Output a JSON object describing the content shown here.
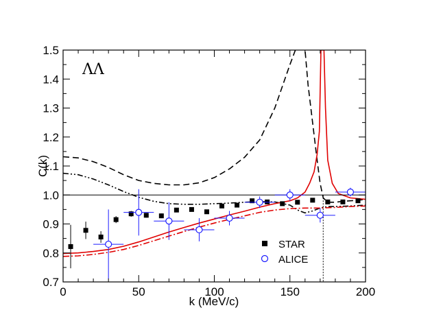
{
  "chart_data": {
    "type": "scatter",
    "panel_label": "ΛΛ",
    "xlabel": "k (MeV/c)",
    "ylabel": "C(k)",
    "xlim": [
      0,
      200
    ],
    "ylim": [
      0.7,
      1.5
    ],
    "x_ticks": [
      0,
      50,
      100,
      150,
      200
    ],
    "y_ticks": [
      0.7,
      0.8,
      0.9,
      1.0,
      1.1,
      1.2,
      1.3,
      1.4,
      1.5
    ],
    "x_tick_labels": [
      "0",
      "50",
      "100",
      "150",
      "200"
    ],
    "y_tick_labels": [
      "0.7",
      "0.8",
      "0.9",
      "1.0",
      "1.1",
      "1.2",
      "1.3",
      "1.4",
      "1.5"
    ],
    "reference_line": 1.0,
    "vertical_marker_x": 172,
    "legend_position": "lower-right",
    "series": [
      {
        "name": "STAR",
        "style": "filled-square",
        "color": "#000000",
        "x": [
          5,
          15,
          25,
          35,
          45,
          55,
          65,
          75,
          85,
          95,
          105,
          115,
          125,
          135,
          145,
          155,
          165,
          175,
          185,
          195
        ],
        "y": [
          0.822,
          0.878,
          0.855,
          0.915,
          0.935,
          0.93,
          0.928,
          0.948,
          0.95,
          0.942,
          0.962,
          0.965,
          0.98,
          0.976,
          0.97,
          0.975,
          0.982,
          0.976,
          0.976,
          0.98
        ],
        "err": [
          0.075,
          0.03,
          0.02,
          0.012,
          0.01,
          0.008,
          0.008,
          0.006,
          0.006,
          0.006,
          0.005,
          0.005,
          0.005,
          0.005,
          0.005,
          0.005,
          0.005,
          0.005,
          0.005,
          0.005
        ]
      },
      {
        "name": "ALICE",
        "style": "open-circle",
        "color": "#1a1aff",
        "x": [
          30,
          50,
          70,
          90,
          110,
          130,
          150,
          170,
          190
        ],
        "y": [
          0.83,
          0.94,
          0.91,
          0.88,
          0.92,
          0.975,
          1.0,
          0.93,
          1.01
        ],
        "xerr": [
          10,
          10,
          10,
          10,
          10,
          10,
          10,
          10,
          10
        ],
        "yerr": [
          0.12,
          0.08,
          0.065,
          0.04,
          0.025,
          0.02,
          0.02,
          0.025,
          0.015
        ]
      },
      {
        "name": "black-dashed",
        "style": "dashed",
        "color": "#000000",
        "x": [
          0,
          10,
          20,
          30,
          40,
          50,
          60,
          70,
          80,
          90,
          100,
          110,
          120,
          130,
          140,
          150,
          155,
          158,
          160,
          162,
          165,
          168,
          170,
          172,
          175,
          180,
          185,
          190,
          195,
          200
        ],
        "y": [
          1.132,
          1.128,
          1.115,
          1.095,
          1.07,
          1.05,
          1.04,
          1.035,
          1.035,
          1.042,
          1.06,
          1.09,
          1.13,
          1.19,
          1.3,
          1.45,
          1.52,
          1.55,
          1.5,
          1.38,
          1.25,
          1.12,
          1.04,
          0.99,
          0.975,
          0.975,
          0.978,
          0.98,
          0.982,
          0.985
        ]
      },
      {
        "name": "black-dash-dot",
        "style": "dash-dot-dot",
        "color": "#000000",
        "x": [
          0,
          10,
          20,
          30,
          40,
          50,
          60,
          70,
          80,
          90,
          100,
          110,
          120,
          130,
          140,
          150,
          155,
          160,
          165,
          170,
          175,
          180,
          190,
          200
        ],
        "y": [
          1.075,
          1.07,
          1.055,
          1.035,
          1.012,
          0.992,
          0.978,
          0.97,
          0.968,
          0.968,
          0.97,
          0.972,
          0.975,
          0.977,
          0.976,
          0.965,
          0.948,
          0.938,
          0.945,
          0.955,
          0.96,
          0.96,
          0.962,
          0.965
        ]
      },
      {
        "name": "red-solid",
        "style": "solid",
        "color": "#e00000",
        "x": [
          0,
          10,
          20,
          30,
          40,
          50,
          60,
          70,
          80,
          90,
          100,
          110,
          120,
          130,
          140,
          150,
          155,
          160,
          163,
          166,
          168,
          169.5,
          170.5,
          171.5,
          172.5,
          173.5,
          175,
          178,
          182,
          190,
          200
        ],
        "y": [
          0.798,
          0.8,
          0.805,
          0.812,
          0.823,
          0.838,
          0.855,
          0.872,
          0.888,
          0.903,
          0.917,
          0.931,
          0.944,
          0.958,
          0.97,
          0.98,
          0.99,
          1.01,
          1.04,
          1.08,
          1.14,
          1.22,
          1.5,
          1.5,
          1.5,
          1.3,
          1.12,
          1.04,
          1.005,
          0.99,
          0.985
        ]
      },
      {
        "name": "red-dash-dot",
        "style": "dash-dot",
        "color": "#e00000",
        "x": [
          0,
          10,
          20,
          30,
          40,
          50,
          60,
          70,
          80,
          90,
          100,
          110,
          120,
          130,
          140,
          150,
          160,
          170,
          180,
          190,
          200
        ],
        "y": [
          0.788,
          0.79,
          0.795,
          0.802,
          0.812,
          0.826,
          0.842,
          0.858,
          0.874,
          0.889,
          0.903,
          0.916,
          0.928,
          0.94,
          0.948,
          0.953,
          0.955,
          0.955,
          0.957,
          0.96,
          0.962
        ]
      }
    ]
  }
}
